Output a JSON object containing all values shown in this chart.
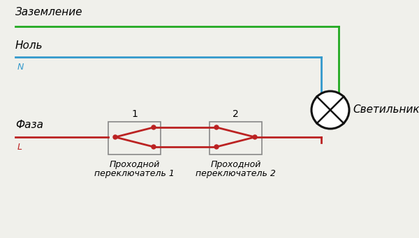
{
  "bg_color": "#f0f0eb",
  "ground_color": "#22aa22",
  "neutral_color": "#3399cc",
  "phase_color": "#bb2222",
  "switch_border_color": "#888888",
  "lamp_color": "#111111",
  "label_zazemlenie": "Заземление",
  "label_nol": "Ноль",
  "label_N": "N",
  "label_faza": "Фаза",
  "label_L": "L",
  "label_svetilnik": "Светильник",
  "label_1": "1",
  "label_2": "2",
  "label_sw1_line1": "Проходной",
  "label_sw1_line2": "переключатель 1",
  "label_sw2_line1": "Проходной",
  "label_sw2_line2": "переключатель 2",
  "figsize": [
    6.0,
    3.42
  ],
  "dpi": 100
}
